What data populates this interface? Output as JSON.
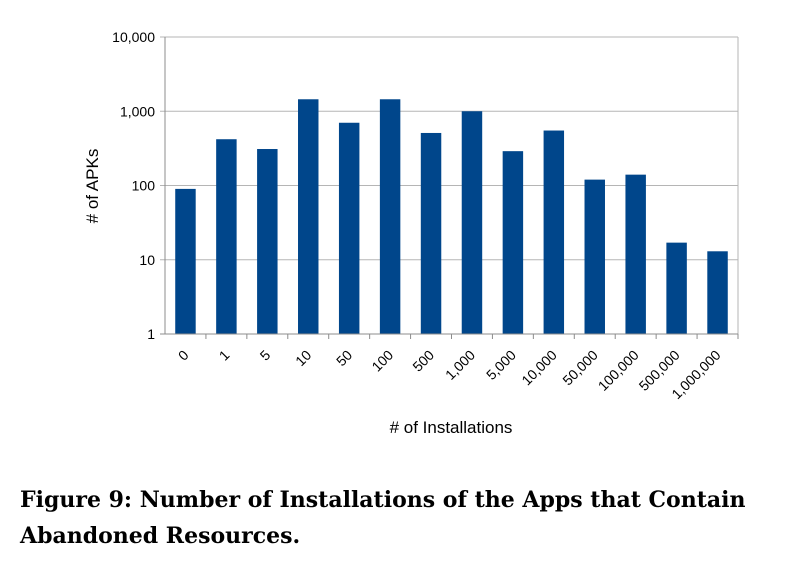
{
  "chart_data": {
    "type": "bar",
    "scale_y": "log10",
    "categories": [
      "0",
      "1",
      "5",
      "10",
      "50",
      "100",
      "500",
      "1,000",
      "5,000",
      "10,000",
      "50,000",
      "100,000",
      "500,000",
      "1,000,000"
    ],
    "values": [
      90,
      420,
      310,
      1450,
      700,
      1450,
      510,
      1000,
      290,
      550,
      120,
      140,
      17,
      13
    ],
    "xlabel": "# of Installations",
    "ylabel": "# of APKs",
    "ylim": [
      1,
      10000
    ],
    "yticks": [
      1,
      10,
      100,
      1000,
      10000
    ],
    "ytick_labels": [
      "1",
      "10",
      "100",
      "1,000",
      "10,000"
    ],
    "grid": "horizontal",
    "bar_color": "#00468B"
  },
  "caption": "Figure 9: Number of Installations of the Apps that Contain Abandoned Resources."
}
